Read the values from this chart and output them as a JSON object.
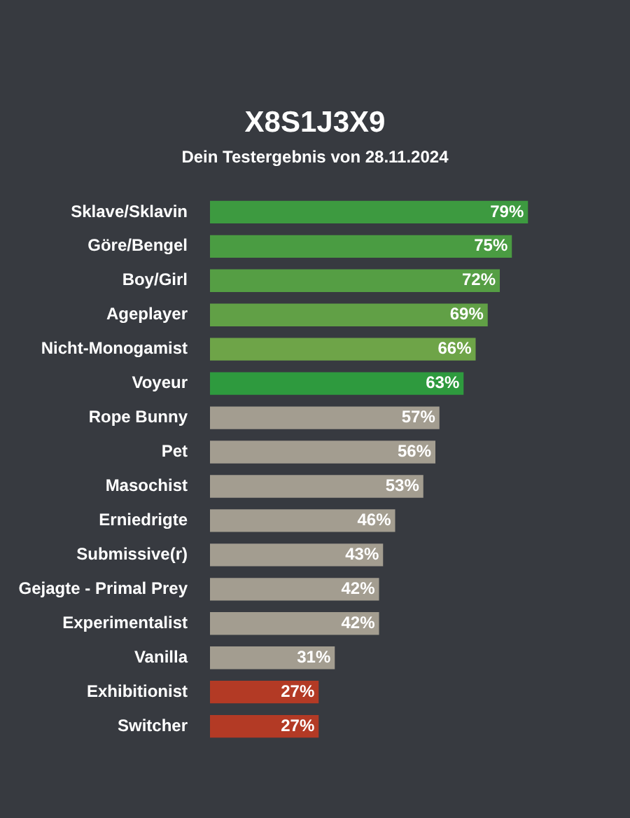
{
  "chart_data": {
    "type": "bar",
    "orientation": "horizontal",
    "title": "X8S1J3X9",
    "subtitle": "Dein Testergebnis von 28.11.2024",
    "categories": [
      "Sklave/Sklavin",
      "Göre/Bengel",
      "Boy/Girl",
      "Ageplayer",
      "Nicht-Monogamist",
      "Voyeur",
      "Rope Bunny",
      "Pet",
      "Masochist",
      "Erniedrigte",
      "Submissive(r)",
      "Gejagte - Primal Prey",
      "Experimentalist",
      "Vanilla",
      "Exhibitionist",
      "Switcher"
    ],
    "values": [
      79,
      75,
      72,
      69,
      66,
      63,
      57,
      56,
      53,
      46,
      43,
      42,
      42,
      31,
      27,
      27
    ],
    "value_labels": [
      "79%",
      "75%",
      "72%",
      "69%",
      "66%",
      "63%",
      "57%",
      "56%",
      "53%",
      "46%",
      "43%",
      "42%",
      "42%",
      "31%",
      "27%",
      "27%"
    ],
    "colors": [
      "#3d9a40",
      "#4a9c42",
      "#559e44",
      "#61a046",
      "#6ea448",
      "#2e9a3e",
      "#a39d90",
      "#a39d90",
      "#a39d90",
      "#a39d90",
      "#a39d90",
      "#a39d90",
      "#a39d90",
      "#a39d90",
      "#b33a25",
      "#b33a25"
    ],
    "legend": false
  }
}
